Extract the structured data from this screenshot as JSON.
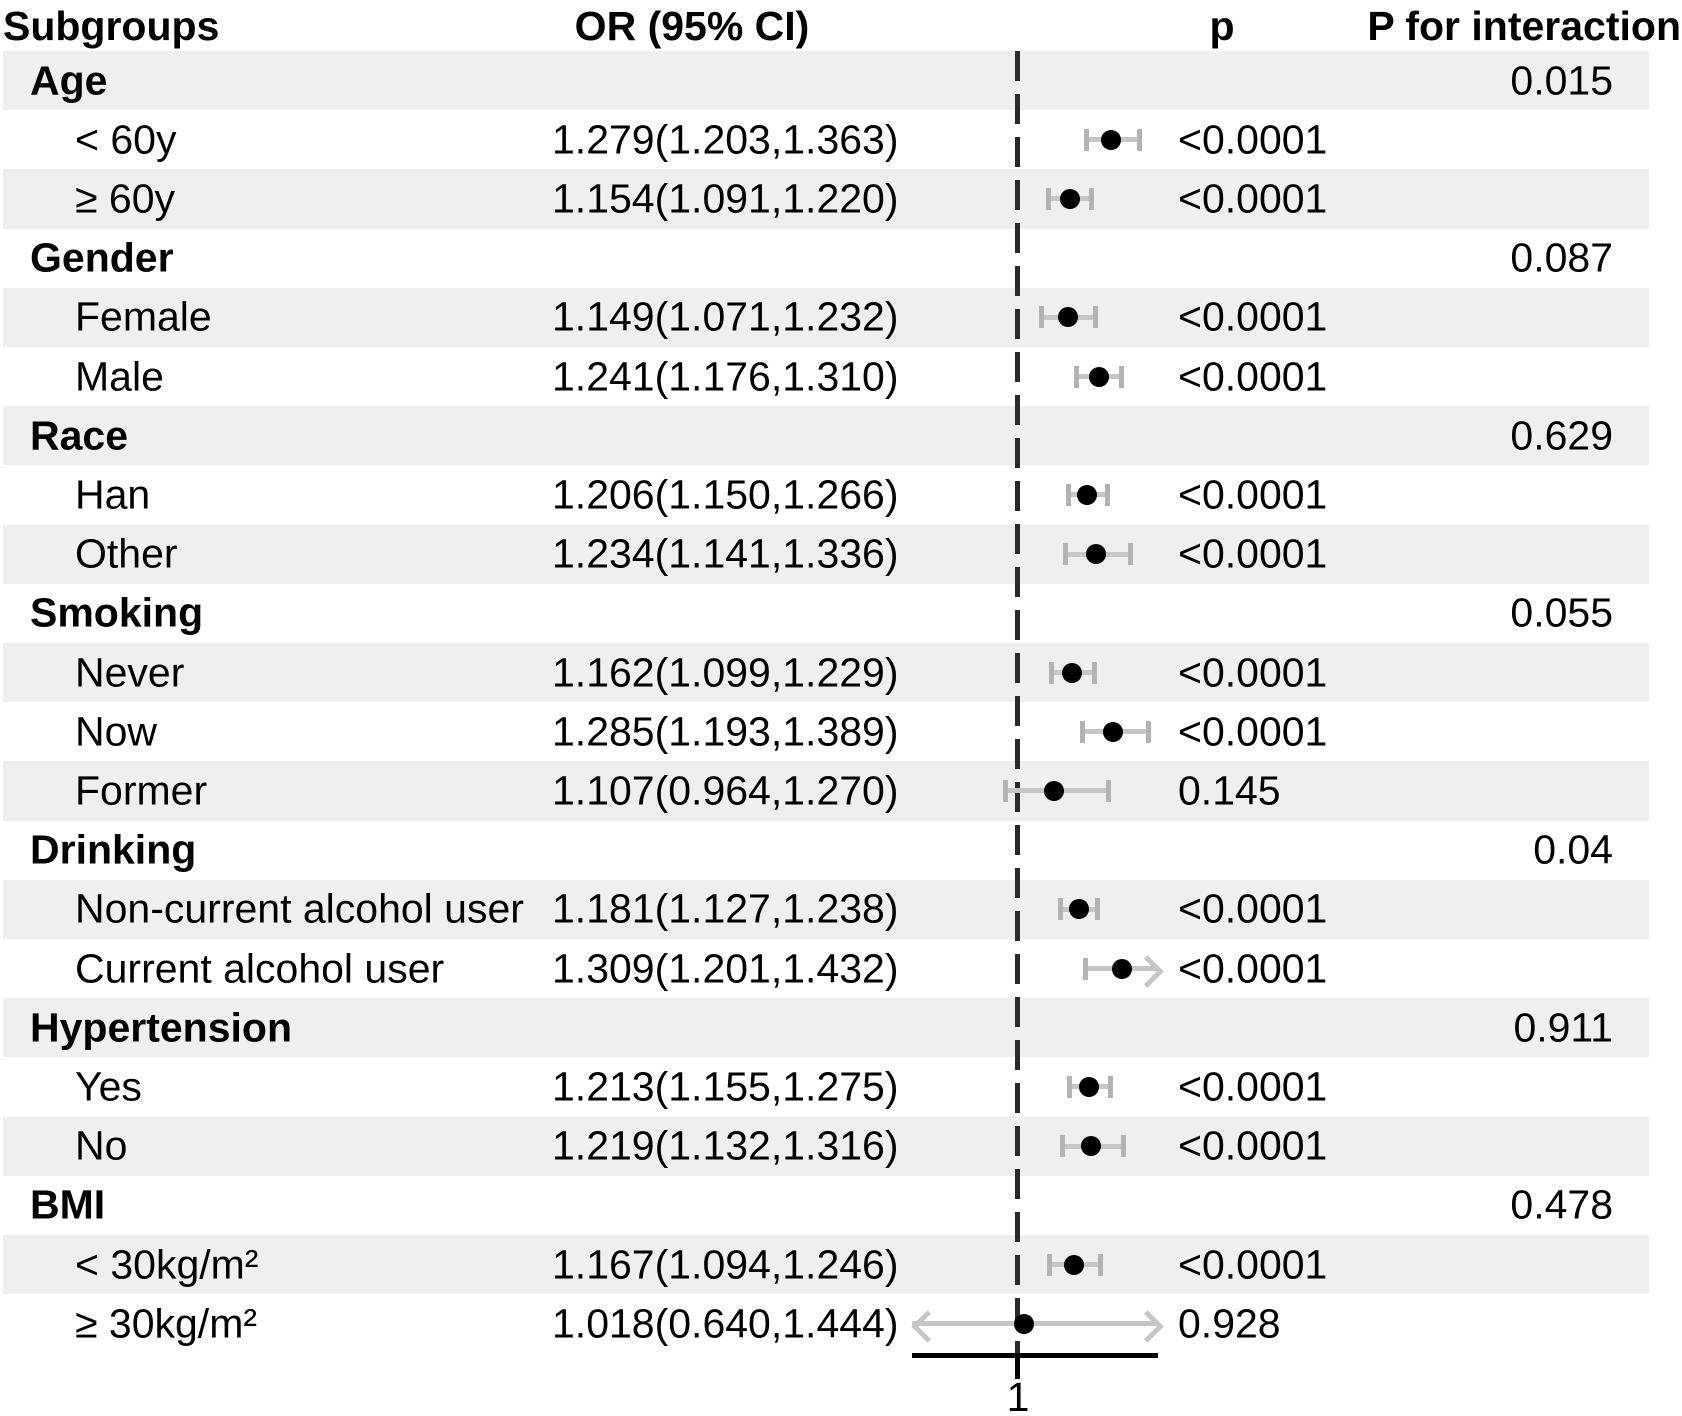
{
  "colors": {
    "stripe": "#efefef",
    "ci_line": "#c6c6c6",
    "ci_cap": "#b3b3b3",
    "dot": "#000000",
    "dashed_ref_line": "#2a2a2a",
    "axis": "#000000",
    "text": "#000000"
  },
  "chart_data": {
    "type": "scatter",
    "variant": "forest-plot",
    "title": "",
    "columns": [
      "Subgroups",
      "OR (95% CI)",
      "p",
      "P for interaction"
    ],
    "x_axis": {
      "scale": "linear",
      "reference_value": 1,
      "tick_labels": [
        "1"
      ],
      "visible_range": [
        0.684,
        1.418
      ],
      "grid": false
    },
    "legend": null,
    "groups": [
      {
        "label": "Age",
        "p_interaction": "0.015",
        "items": [
          {
            "label": "< 60y",
            "or": 1.279,
            "lo": 1.203,
            "hi": 1.363,
            "or_ci_text": "1.279(1.203,1.363)",
            "p": "<0.0001"
          },
          {
            "label": "≥ 60y",
            "or": 1.154,
            "lo": 1.091,
            "hi": 1.22,
            "or_ci_text": "1.154(1.091,1.220)",
            "p": "<0.0001"
          }
        ]
      },
      {
        "label": "Gender",
        "p_interaction": "0.087",
        "items": [
          {
            "label": "Female",
            "or": 1.149,
            "lo": 1.071,
            "hi": 1.232,
            "or_ci_text": "1.149(1.071,1.232)",
            "p": "<0.0001"
          },
          {
            "label": "Male",
            "or": 1.241,
            "lo": 1.176,
            "hi": 1.31,
            "or_ci_text": "1.241(1.176,1.310)",
            "p": "<0.0001"
          }
        ]
      },
      {
        "label": "Race",
        "p_interaction": "0.629",
        "items": [
          {
            "label": "Han",
            "or": 1.206,
            "lo": 1.15,
            "hi": 1.266,
            "or_ci_text": "1.206(1.150,1.266)",
            "p": "<0.0001"
          },
          {
            "label": "Other",
            "or": 1.234,
            "lo": 1.141,
            "hi": 1.336,
            "or_ci_text": "1.234(1.141,1.336)",
            "p": "<0.0001"
          }
        ]
      },
      {
        "label": "Smoking",
        "p_interaction": "0.055",
        "items": [
          {
            "label": "Never",
            "or": 1.162,
            "lo": 1.099,
            "hi": 1.229,
            "or_ci_text": "1.162(1.099,1.229)",
            "p": "<0.0001"
          },
          {
            "label": "Now",
            "or": 1.285,
            "lo": 1.193,
            "hi": 1.389,
            "or_ci_text": "1.285(1.193,1.389)",
            "p": "<0.0001"
          },
          {
            "label": "Former",
            "or": 1.107,
            "lo": 0.964,
            "hi": 1.27,
            "or_ci_text": "1.107(0.964,1.270)",
            "p": "0.145"
          }
        ]
      },
      {
        "label": "Drinking",
        "p_interaction": "0.04",
        "items": [
          {
            "label": "Non-current alcohol user",
            "or": 1.181,
            "lo": 1.127,
            "hi": 1.238,
            "or_ci_text": "1.181(1.127,1.238)",
            "p": "<0.0001"
          },
          {
            "label": "Current alcohol user",
            "or": 1.309,
            "lo": 1.201,
            "hi": 1.432,
            "or_ci_text": "1.309(1.201,1.432)",
            "p": "<0.0001"
          }
        ]
      },
      {
        "label": "Hypertension",
        "p_interaction": "0.911",
        "items": [
          {
            "label": "Yes",
            "or": 1.213,
            "lo": 1.155,
            "hi": 1.275,
            "or_ci_text": "1.213(1.155,1.275)",
            "p": "<0.0001"
          },
          {
            "label": "No",
            "or": 1.219,
            "lo": 1.132,
            "hi": 1.316,
            "or_ci_text": "1.219(1.132,1.316)",
            "p": "<0.0001"
          }
        ]
      },
      {
        "label": "BMI",
        "p_interaction": "0.478",
        "items": [
          {
            "label": "< 30kg/m²",
            "or": 1.167,
            "lo": 1.094,
            "hi": 1.246,
            "or_ci_text": "1.167(1.094,1.246)",
            "p": "<0.0001"
          },
          {
            "label": "≥ 30kg/m²",
            "or": 1.018,
            "lo": 0.64,
            "hi": 1.444,
            "or_ci_text": "1.018(0.640,1.444)",
            "p": "0.928"
          }
        ]
      }
    ]
  }
}
